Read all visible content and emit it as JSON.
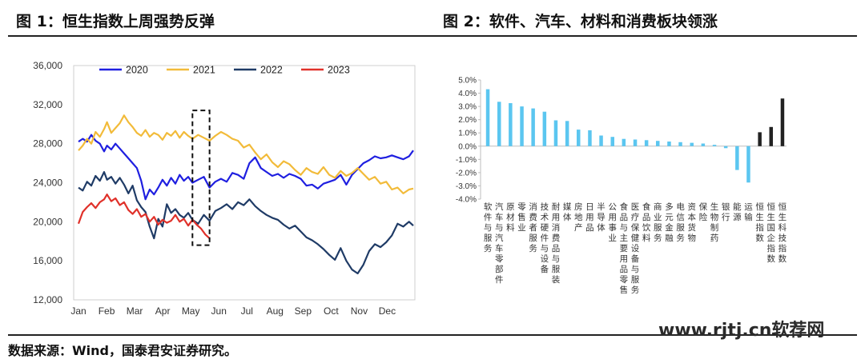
{
  "header": {
    "chart1_title": "图 1：恒生指数上周强势反弹",
    "chart2_title": "图 2：软件、汽车、材料和消费板块领涨"
  },
  "footer": {
    "source": "数据来源：Wind，国泰君安证券研究。",
    "watermark": "www.rjtj.cn软荐网"
  },
  "colors": {
    "s2020": "#1f1fe0",
    "s2021": "#f2bb3a",
    "s2022": "#1f3b66",
    "s2023": "#e0312a",
    "bar_positive": "#5bc6f0",
    "bar_index": "#222222"
  },
  "chart_data": [
    {
      "type": "line",
      "title": "图 1：恒生指数上周强势反弹",
      "x_ticks": [
        "Jan",
        "Feb",
        "Mar",
        "Apr",
        "May",
        "Jun",
        "Jul",
        "Aug",
        "Sep",
        "Oct",
        "Nov",
        "Dec"
      ],
      "y_ticks": [
        "12,000",
        "16,000",
        "20,000",
        "24,000",
        "28,000",
        "32,000",
        "36,000"
      ],
      "ylim": [
        12000,
        36000
      ],
      "legend": "top",
      "grid": false,
      "highlight_box": {
        "x_range": [
          4.0,
          4.6
        ],
        "y_range": [
          17600,
          31400
        ],
        "style": "dashed"
      },
      "series": [
        {
          "name": "2020",
          "color_key": "s2020",
          "x": [
            0,
            0.15,
            0.3,
            0.45,
            0.6,
            0.75,
            0.9,
            1.0,
            1.15,
            1.3,
            1.45,
            1.6,
            1.75,
            1.9,
            2.05,
            2.2,
            2.35,
            2.5,
            2.65,
            2.8,
            2.95,
            3.1,
            3.25,
            3.4,
            3.55,
            3.7,
            3.85,
            4.0,
            4.2,
            4.4,
            4.6,
            4.8,
            5.0,
            5.2,
            5.4,
            5.6,
            5.8,
            6.0,
            6.2,
            6.4,
            6.6,
            6.8,
            7.0,
            7.2,
            7.4,
            7.6,
            7.8,
            8.0,
            8.2,
            8.4,
            8.6,
            8.8,
            9.0,
            9.2,
            9.4,
            9.6,
            9.8,
            10.0,
            10.2,
            10.4,
            10.6,
            10.8,
            11.0,
            11.2,
            11.4,
            11.6,
            11.75
          ],
          "y": [
            28200,
            28500,
            28200,
            28900,
            28300,
            28000,
            27200,
            27800,
            27400,
            28000,
            27500,
            27000,
            26500,
            26000,
            25500,
            24200,
            22300,
            23300,
            22800,
            23500,
            24300,
            23700,
            24500,
            23900,
            24800,
            24200,
            24600,
            24000,
            24300,
            24600,
            23500,
            24100,
            24400,
            24100,
            25000,
            24800,
            24400,
            26000,
            26600,
            25500,
            25100,
            24700,
            24900,
            24500,
            24900,
            24700,
            24400,
            23700,
            23800,
            23400,
            23900,
            24100,
            24300,
            24800,
            23800,
            24800,
            25400,
            26000,
            26300,
            26700,
            26500,
            26600,
            26800,
            26600,
            26400,
            26700,
            27300
          ]
        },
        {
          "name": "2021",
          "color_key": "s2021",
          "x": [
            0,
            0.15,
            0.3,
            0.45,
            0.6,
            0.75,
            0.9,
            1.0,
            1.15,
            1.3,
            1.45,
            1.6,
            1.75,
            1.9,
            2.05,
            2.2,
            2.35,
            2.5,
            2.65,
            2.8,
            2.95,
            3.1,
            3.25,
            3.4,
            3.55,
            3.7,
            3.85,
            4.0,
            4.2,
            4.4,
            4.6,
            4.8,
            5.0,
            5.2,
            5.4,
            5.6,
            5.8,
            6.0,
            6.2,
            6.4,
            6.6,
            6.8,
            7.0,
            7.2,
            7.4,
            7.6,
            7.8,
            8.0,
            8.2,
            8.4,
            8.6,
            8.8,
            9.0,
            9.2,
            9.4,
            9.6,
            9.8,
            10.0,
            10.2,
            10.4,
            10.6,
            10.8,
            11.0,
            11.2,
            11.4,
            11.6,
            11.75
          ],
          "y": [
            27300,
            27800,
            28500,
            28000,
            29200,
            28700,
            29500,
            30200,
            29100,
            29600,
            30100,
            30900,
            30200,
            29700,
            29100,
            28800,
            29400,
            28700,
            29100,
            28900,
            28400,
            29100,
            28800,
            29300,
            28600,
            29200,
            28800,
            28500,
            28900,
            28600,
            28300,
            28800,
            29200,
            28900,
            28500,
            28300,
            27600,
            27900,
            27100,
            26400,
            26900,
            26100,
            25600,
            26200,
            25900,
            25300,
            24800,
            25500,
            25100,
            24900,
            25600,
            24800,
            24500,
            25200,
            24700,
            25000,
            25500,
            24900,
            24300,
            24600,
            23900,
            24100,
            23300,
            23500,
            22900,
            23300,
            23400
          ]
        },
        {
          "name": "2022",
          "color_key": "s2022",
          "x": [
            0,
            0.15,
            0.3,
            0.45,
            0.6,
            0.75,
            0.9,
            1.0,
            1.15,
            1.3,
            1.45,
            1.6,
            1.75,
            1.9,
            2.05,
            2.2,
            2.35,
            2.5,
            2.65,
            2.8,
            2.95,
            3.1,
            3.25,
            3.4,
            3.55,
            3.7,
            3.85,
            4.0,
            4.2,
            4.4,
            4.6,
            4.8,
            5.0,
            5.2,
            5.4,
            5.6,
            5.8,
            6.0,
            6.2,
            6.4,
            6.6,
            6.8,
            7.0,
            7.2,
            7.4,
            7.6,
            7.8,
            8.0,
            8.2,
            8.4,
            8.6,
            8.8,
            9.0,
            9.2,
            9.4,
            9.6,
            9.8,
            10.0,
            10.2,
            10.4,
            10.6,
            10.8,
            11.0,
            11.2,
            11.4,
            11.6,
            11.75
          ],
          "y": [
            23500,
            23200,
            24100,
            23700,
            24700,
            24200,
            25100,
            24300,
            24600,
            23900,
            24500,
            23800,
            22900,
            23700,
            22200,
            21500,
            21000,
            19500,
            18300,
            20300,
            19500,
            21800,
            20900,
            21300,
            20700,
            20400,
            20900,
            20200,
            19800,
            20700,
            20100,
            21100,
            21400,
            21800,
            21300,
            22000,
            21700,
            22300,
            21600,
            21100,
            20700,
            20400,
            20200,
            19700,
            19300,
            19600,
            19000,
            18400,
            18100,
            17700,
            17200,
            16600,
            16100,
            17300,
            16000,
            15100,
            14700,
            15600,
            17000,
            17700,
            17400,
            17900,
            18600,
            19800,
            19500,
            20000,
            19600
          ]
        },
        {
          "name": "2023",
          "color_key": "s2023",
          "x": [
            0,
            0.15,
            0.3,
            0.45,
            0.6,
            0.75,
            0.9,
            1.0,
            1.15,
            1.3,
            1.45,
            1.6,
            1.75,
            1.9,
            2.05,
            2.2,
            2.35,
            2.5,
            2.65,
            2.8,
            2.95,
            3.1,
            3.25,
            3.4,
            3.55,
            3.7,
            3.85,
            4.0,
            4.15,
            4.3,
            4.45,
            4.6
          ],
          "y": [
            19800,
            21000,
            21500,
            21900,
            21400,
            22000,
            22300,
            22800,
            22100,
            22400,
            21700,
            22000,
            21200,
            20800,
            21300,
            20500,
            20800,
            20000,
            20500,
            19700,
            20200,
            19900,
            20100,
            20700,
            20000,
            20300,
            19600,
            20200,
            19700,
            19300,
            18700,
            18300
          ]
        }
      ]
    },
    {
      "type": "bar",
      "title": "图 2：软件、汽车、材料和消费板块领涨",
      "ylim": [
        -4.0,
        5.0
      ],
      "y_ticks": [
        "5.0%",
        "4.0%",
        "3.0%",
        "2.0%",
        "1.0%",
        "0.0%",
        "-1.0%",
        "-2.0%",
        "-3.0%",
        "-4.0%"
      ],
      "categories": [
        "软件与服务",
        "汽车与汽车零部件",
        "原材料",
        "零售业",
        "消费者服务",
        "技术硬件与设备",
        "耐用消费品与服装",
        "媒体",
        "房地产",
        "日用品",
        "半导体",
        "公用事业",
        "食品与主要用品零售",
        "医疗保健设备与服务",
        "食品饮料",
        "商业服务",
        "多元金融",
        "电信服务",
        "资本货物",
        "保险",
        "生物制药",
        "银行",
        "能源",
        "运输",
        "恒生指数",
        "恒生国企指数",
        "恒生科技指数"
      ],
      "values": [
        4.3,
        3.35,
        3.25,
        3.0,
        2.85,
        2.6,
        1.95,
        1.9,
        1.25,
        1.2,
        0.8,
        0.7,
        0.55,
        0.5,
        0.45,
        0.4,
        0.35,
        0.3,
        0.25,
        0.2,
        0.1,
        -0.15,
        -1.8,
        -2.75,
        1.05,
        1.45,
        3.6
      ],
      "highlight_last_n": 3,
      "grid": false
    }
  ]
}
